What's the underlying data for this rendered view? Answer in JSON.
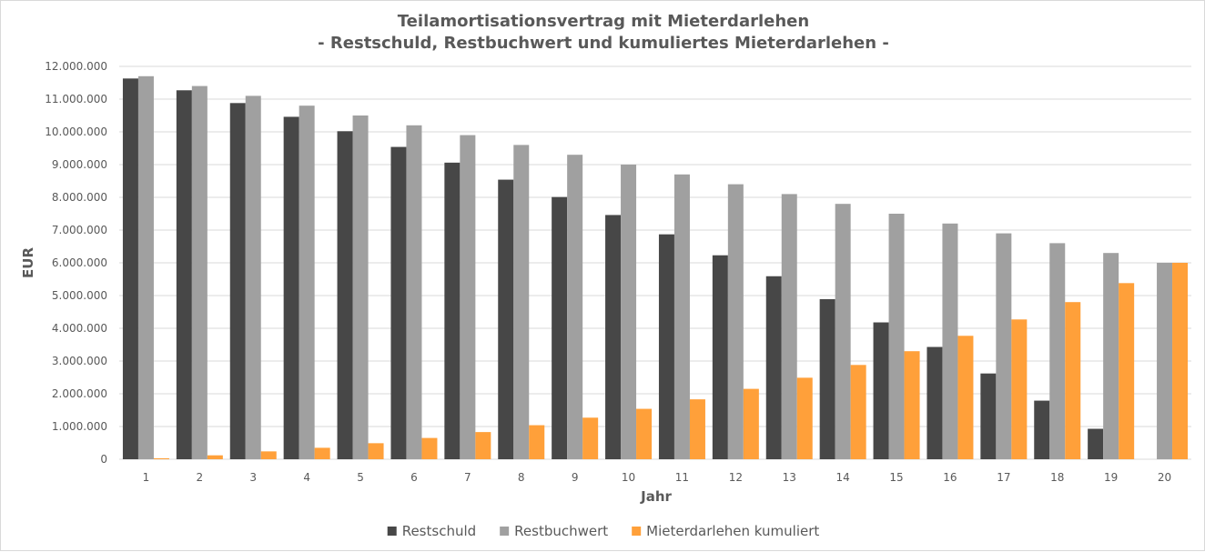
{
  "chart_data": {
    "type": "bar",
    "title": "Teilamortisationsvertrag mit Mieterdarlehen",
    "subtitle": "- Restschuld, Restbuchwert und kumuliertes Mieterdarlehen -",
    "xlabel": "Jahr",
    "ylabel": "EUR",
    "ylim": [
      0,
      12000000
    ],
    "yticks": [
      0,
      1000000,
      2000000,
      3000000,
      4000000,
      5000000,
      6000000,
      7000000,
      8000000,
      9000000,
      10000000,
      11000000,
      12000000
    ],
    "ytick_labels": [
      "0",
      "1.000.000",
      "2.000.000",
      "3.000.000",
      "4.000.000",
      "5.000.000",
      "6.000.000",
      "7.000.000",
      "8.000.000",
      "9.000.000",
      "10.000.000",
      "11.000.000",
      "12.000.000"
    ],
    "grid": true,
    "legend_position": "bottom",
    "categories": [
      "1",
      "2",
      "3",
      "4",
      "5",
      "6",
      "7",
      "8",
      "9",
      "10",
      "11",
      "12",
      "13",
      "14",
      "15",
      "16",
      "17",
      "18",
      "19",
      "20"
    ],
    "series": [
      {
        "name": "Restschuld",
        "color": "#474747",
        "values": [
          11630000,
          11270000,
          10880000,
          10460000,
          10020000,
          9540000,
          9060000,
          8540000,
          8010000,
          7460000,
          6870000,
          6230000,
          5590000,
          4890000,
          4180000,
          3430000,
          2620000,
          1790000,
          930000,
          0
        ]
      },
      {
        "name": "Restbuchwert",
        "color": "#a0a0a0",
        "values": [
          11700000,
          11400000,
          11100000,
          10800000,
          10500000,
          10200000,
          9900000,
          9600000,
          9300000,
          9000000,
          8700000,
          8400000,
          8100000,
          7800000,
          7500000,
          7200000,
          6900000,
          6600000,
          6300000,
          6000000
        ]
      },
      {
        "name": "Mieterdarlehen kumuliert",
        "color": "#ffa03a",
        "values": [
          30000,
          120000,
          240000,
          350000,
          490000,
          650000,
          830000,
          1040000,
          1270000,
          1540000,
          1830000,
          2150000,
          2490000,
          2880000,
          3300000,
          3770000,
          4270000,
          4800000,
          5380000,
          6000000
        ]
      }
    ]
  }
}
